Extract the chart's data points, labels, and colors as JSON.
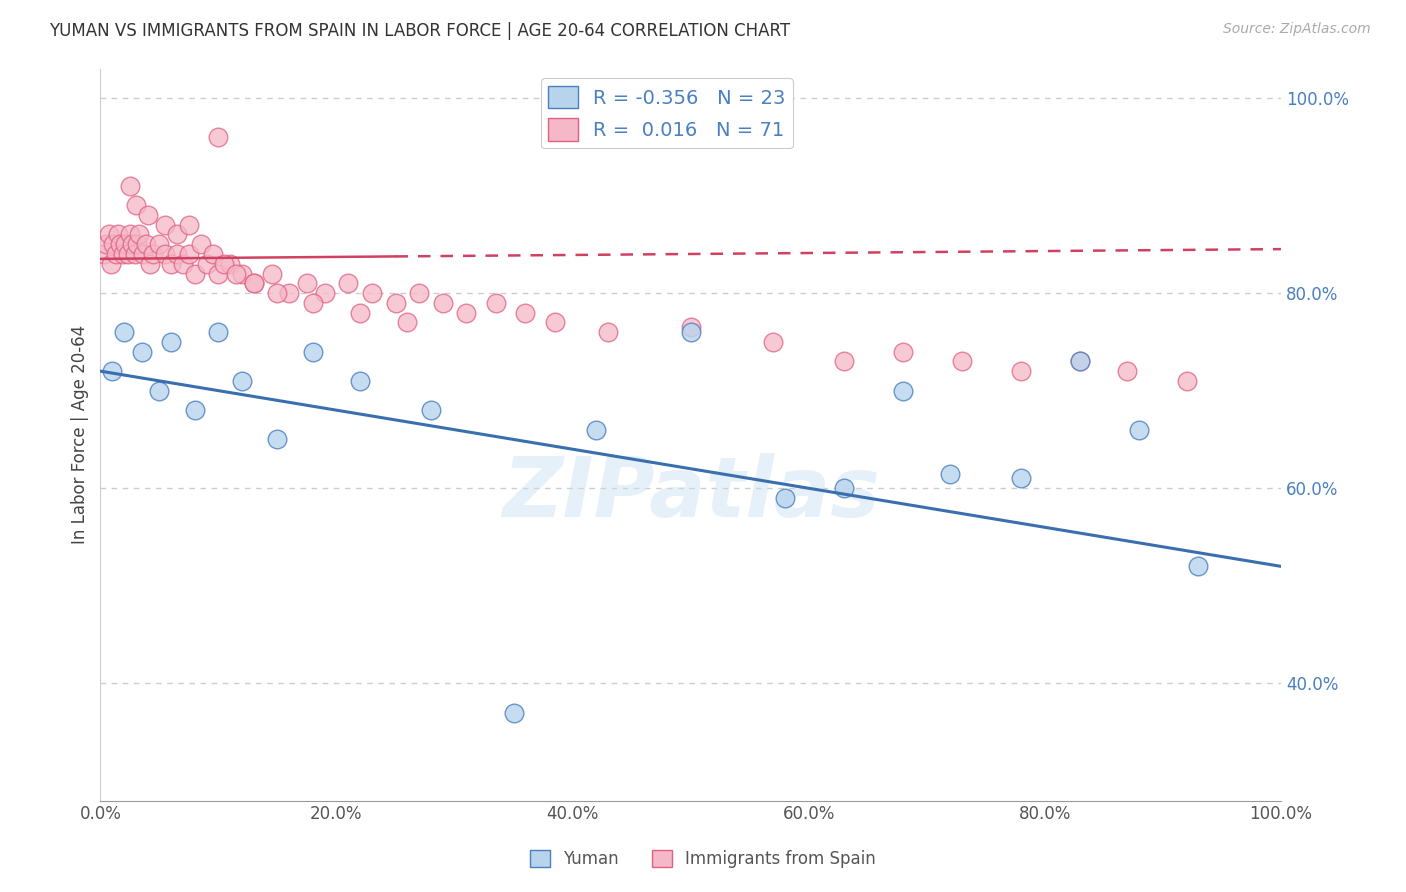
{
  "title": "YUMAN VS IMMIGRANTS FROM SPAIN IN LABOR FORCE | AGE 20-64 CORRELATION CHART",
  "source": "Source: ZipAtlas.com",
  "ylabel": "In Labor Force | Age 20-64",
  "blue_R": "-0.356",
  "blue_N": "23",
  "pink_R": "0.016",
  "pink_N": "71",
  "blue_fill": "#b8d4ed",
  "pink_fill": "#f5b8c8",
  "blue_edge": "#4a7fc0",
  "pink_edge": "#e06080",
  "blue_line": "#3a6faf",
  "pink_line": "#d04060",
  "blue_scatter_x": [
    1.0,
    2.0,
    3.5,
    5.0,
    6.0,
    8.0,
    10.0,
    12.0,
    15.0,
    18.0,
    22.0,
    28.0,
    35.0,
    42.0,
    50.0,
    58.0,
    63.0,
    68.0,
    72.0,
    78.0,
    83.0,
    88.0,
    93.0
  ],
  "blue_scatter_y": [
    72.0,
    76.0,
    74.0,
    70.0,
    75.0,
    68.0,
    76.0,
    71.0,
    65.0,
    74.0,
    71.0,
    68.0,
    37.0,
    66.0,
    76.0,
    59.0,
    60.0,
    70.0,
    61.5,
    61.0,
    73.0,
    66.0,
    52.0
  ],
  "pink_scatter_x": [
    0.3,
    0.5,
    0.7,
    0.9,
    1.1,
    1.3,
    1.5,
    1.7,
    1.9,
    2.1,
    2.3,
    2.5,
    2.7,
    2.9,
    3.1,
    3.3,
    3.6,
    3.9,
    4.2,
    4.5,
    5.0,
    5.5,
    6.0,
    6.5,
    7.0,
    7.5,
    8.0,
    9.0,
    10.0,
    11.0,
    12.0,
    13.0,
    14.5,
    16.0,
    17.5,
    19.0,
    21.0,
    23.0,
    25.0,
    27.0,
    29.0,
    31.0,
    33.5,
    36.0,
    38.5,
    43.0,
    50.0,
    57.0,
    63.0,
    68.0,
    73.0,
    78.0,
    83.0,
    87.0,
    92.0,
    10.0,
    2.5,
    3.0,
    4.0,
    5.5,
    6.5,
    7.5,
    8.5,
    9.5,
    10.5,
    11.5,
    13.0,
    15.0,
    18.0,
    22.0,
    26.0
  ],
  "pink_scatter_y": [
    84.0,
    85.0,
    86.0,
    83.0,
    85.0,
    84.0,
    86.0,
    85.0,
    84.0,
    85.0,
    84.0,
    86.0,
    85.0,
    84.0,
    85.0,
    86.0,
    84.0,
    85.0,
    83.0,
    84.0,
    85.0,
    84.0,
    83.0,
    84.0,
    83.0,
    84.0,
    82.0,
    83.0,
    82.0,
    83.0,
    82.0,
    81.0,
    82.0,
    80.0,
    81.0,
    80.0,
    81.0,
    80.0,
    79.0,
    80.0,
    79.0,
    78.0,
    79.0,
    78.0,
    77.0,
    76.0,
    76.5,
    75.0,
    73.0,
    74.0,
    73.0,
    72.0,
    73.0,
    72.0,
    71.0,
    96.0,
    91.0,
    89.0,
    88.0,
    87.0,
    86.0,
    87.0,
    85.0,
    84.0,
    83.0,
    82.0,
    81.0,
    80.0,
    79.0,
    78.0,
    77.0
  ],
  "xlim": [
    0.0,
    100.0
  ],
  "ylim": [
    28.0,
    103.0
  ],
  "yticks": [
    40.0,
    60.0,
    80.0,
    100.0
  ],
  "ytick_labels": [
    "40.0%",
    "60.0%",
    "80.0%",
    "100.0%"
  ],
  "xticks": [
    0.0,
    20.0,
    40.0,
    60.0,
    80.0,
    100.0
  ],
  "xtick_labels": [
    "0.0%",
    "20.0%",
    "40.0%",
    "60.0%",
    "80.0%",
    "100.0%"
  ],
  "watermark": "ZIPatlas",
  "bg": "#ffffff",
  "grid_color": "#cccccc"
}
